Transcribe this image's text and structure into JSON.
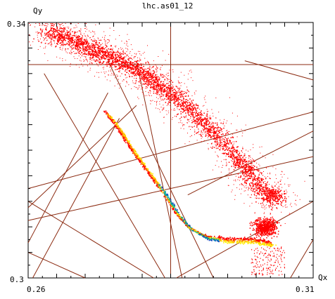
{
  "chart_data": {
    "type": "scatter",
    "title": "lhc.as01_12",
    "xlabel": "Qx",
    "ylabel": "Qy",
    "xlim": [
      0.26,
      0.31
    ],
    "ylim": [
      0.3,
      0.34
    ],
    "x_tick_labels": [
      "0.26",
      "0.31"
    ],
    "y_tick_labels": [
      "0.34",
      "0.3"
    ],
    "grid": false,
    "series": [
      {
        "values": [
          [
            0.263,
            0.3385
          ],
          [
            0.267,
            0.3375
          ],
          [
            0.27,
            0.3362
          ],
          [
            0.273,
            0.335
          ],
          [
            0.276,
            0.334
          ],
          [
            0.2795,
            0.3325
          ],
          [
            0.2825,
            0.3305
          ],
          [
            0.2855,
            0.3285
          ],
          [
            0.289,
            0.3258
          ],
          [
            0.2925,
            0.3228
          ],
          [
            0.2965,
            0.319
          ],
          [
            0.299,
            0.316
          ],
          [
            0.302,
            0.313
          ],
          [
            0.304,
            0.3125
          ]
        ]
      },
      {
        "values": [
          [
            0.2735,
            0.3255
          ],
          [
            0.276,
            0.3225
          ],
          [
            0.2785,
            0.319
          ],
          [
            0.281,
            0.316
          ],
          [
            0.2835,
            0.313
          ],
          [
            0.286,
            0.3095
          ],
          [
            0.288,
            0.3075
          ],
          [
            0.291,
            0.306
          ],
          [
            0.295,
            0.3055
          ],
          [
            0.299,
            0.3055
          ],
          [
            0.3025,
            0.305
          ]
        ]
      }
    ],
    "colors": {
      "scatter": "#ff0000",
      "resonance_lines": "#8b2a10",
      "core_gradient": [
        "#ff0000",
        "#ff9900",
        "#ffee00",
        "#66cc33",
        "#00aaaa",
        "#1040c0"
      ]
    }
  }
}
